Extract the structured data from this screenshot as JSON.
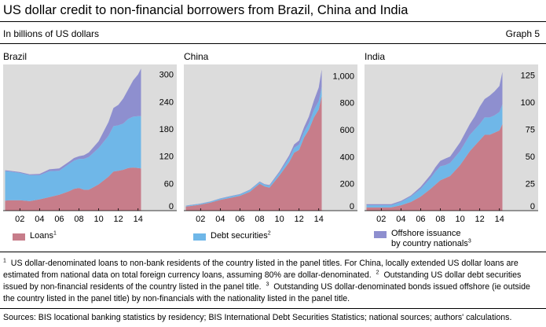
{
  "header": {
    "title": "US dollar credit to non-financial borrowers from Brazil, China and India",
    "subtitle": "In billions of US dollars",
    "graph_label": "Graph 5"
  },
  "colors": {
    "loans": "#c77d8a",
    "debt_securities": "#6fb7e8",
    "offshore": "#8e8fcf",
    "plot_bg": "#dcdcdc"
  },
  "legend": {
    "loans": "Loans",
    "loans_note": "1",
    "debt": "Debt securities",
    "debt_note": "2",
    "offshore_line1": "Offshore issuance",
    "offshore_line2": "by country nationals",
    "offshore_note": "3"
  },
  "chart_data": [
    {
      "type": "area",
      "title": "Brazil",
      "stacked": true,
      "x": [
        2000.5,
        2001,
        2002,
        2003,
        2004,
        2005,
        2006,
        2007,
        2007.5,
        2008,
        2008.5,
        2009,
        2010,
        2011,
        2011.5,
        2012,
        2012.5,
        2013,
        2013.5,
        2014,
        2014.3
      ],
      "xticks": [
        "02",
        "04",
        "06",
        "08",
        "10",
        "12",
        "14"
      ],
      "xtick_values": [
        2002,
        2004,
        2006,
        2008,
        2010,
        2012,
        2014
      ],
      "yticks": [
        0,
        60,
        120,
        180,
        240,
        300
      ],
      "ylim": [
        0,
        315
      ],
      "ytick_side": "right",
      "series": [
        {
          "name": "Loans",
          "values": [
            22,
            23,
            23,
            21,
            25,
            30,
            35,
            43,
            48,
            50,
            46,
            46,
            58,
            75,
            86,
            88,
            90,
            94,
            95,
            94,
            93
          ]
        },
        {
          "name": "Debt securities",
          "values": [
            65,
            63,
            60,
            57,
            53,
            57,
            53,
            60,
            62,
            64,
            68,
            72,
            80,
            90,
            100,
            100,
            102,
            108,
            112,
            114,
            115
          ]
        },
        {
          "name": "Offshore issuance by country nationals",
          "values": [
            2,
            2,
            2,
            2,
            3,
            4,
            5,
            5,
            6,
            6,
            8,
            10,
            15,
            30,
            40,
            45,
            55,
            65,
            80,
            92,
            105
          ]
        }
      ]
    },
    {
      "type": "area",
      "title": "China",
      "stacked": true,
      "x": [
        2000.5,
        2001,
        2002,
        2003,
        2004,
        2005,
        2006,
        2007,
        2007.5,
        2008,
        2008.5,
        2009,
        2010,
        2011,
        2011.5,
        2012,
        2012.5,
        2013,
        2013.5,
        2014,
        2014.3
      ],
      "xticks": [
        "02",
        "04",
        "06",
        "08",
        "10",
        "12",
        "14"
      ],
      "xtick_values": [
        2002,
        2004,
        2006,
        2008,
        2010,
        2012,
        2014
      ],
      "yticks": [
        0,
        200,
        400,
        600,
        800,
        "1,000"
      ],
      "ylim": [
        0,
        1060
      ],
      "ytick_side": "right",
      "series": [
        {
          "name": "Loans",
          "values": [
            30,
            35,
            45,
            60,
            80,
            95,
            110,
            140,
            170,
            200,
            180,
            170,
            260,
            360,
            430,
            450,
            540,
            600,
            690,
            750,
            850
          ]
        },
        {
          "name": "Debt securities",
          "values": [
            6,
            6,
            6,
            7,
            8,
            10,
            10,
            12,
            12,
            12,
            12,
            14,
            20,
            30,
            36,
            40,
            42,
            48,
            55,
            62,
            66
          ]
        },
        {
          "name": "Offshore issuance by country nationals",
          "values": [
            2,
            2,
            2,
            2,
            3,
            3,
            3,
            4,
            4,
            4,
            5,
            6,
            10,
            20,
            25,
            30,
            35,
            50,
            70,
            100,
            130
          ]
        }
      ]
    },
    {
      "type": "area",
      "title": "India",
      "stacked": true,
      "x": [
        2000.5,
        2001,
        2002,
        2003,
        2004,
        2005,
        2006,
        2007,
        2007.5,
        2008,
        2008.5,
        2009,
        2010,
        2011,
        2011.5,
        2012,
        2012.5,
        2013,
        2013.5,
        2014,
        2014.3
      ],
      "xticks": [
        "02",
        "04",
        "06",
        "08",
        "10",
        "12",
        "14"
      ],
      "xtick_values": [
        2002,
        2004,
        2006,
        2008,
        2010,
        2012,
        2014
      ],
      "yticks": [
        0,
        25,
        50,
        75,
        100,
        125
      ],
      "ylim": [
        0,
        132
      ],
      "ytick_side": "right",
      "series": [
        {
          "name": "Loans",
          "values": [
            3,
            3,
            3,
            3,
            5,
            8,
            13,
            20,
            24,
            28,
            30,
            32,
            42,
            55,
            60,
            65,
            70,
            70,
            72,
            74,
            80
          ]
        },
        {
          "name": "Debt securities",
          "values": [
            2,
            2,
            2,
            2,
            3,
            5,
            7,
            10,
            12,
            13,
            12,
            12,
            13,
            15,
            15,
            15,
            16,
            16,
            16,
            17,
            18
          ]
        },
        {
          "name": "Offshore issuance by country nationals",
          "values": [
            1,
            1,
            1,
            1,
            1,
            1,
            2,
            3,
            4,
            5,
            6,
            6,
            8,
            10,
            12,
            16,
            17,
            20,
            22,
            24,
            30
          ]
        }
      ]
    }
  ],
  "notes": {
    "n1_mark": "1",
    "n1": "US dollar-denominated loans to non-bank residents of the country listed in the panel titles. For China, locally extended US dollar loans are estimated from national data on total foreign currency loans, assuming 80% are dollar-denominated.",
    "n2_mark": "2",
    "n2": "Outstanding US dollar debt securities issued by non-financial residents of the country listed in the panel title.",
    "n3_mark": "3",
    "n3": "Outstanding US dollar-denominated bonds issued offshore (ie outside the country listed in the panel title) by non-financials with the nationality listed in the panel title.",
    "sources": "Sources: BIS locational banking statistics by residency; BIS International Debt Securities Statistics; national sources; authors' calculations."
  }
}
